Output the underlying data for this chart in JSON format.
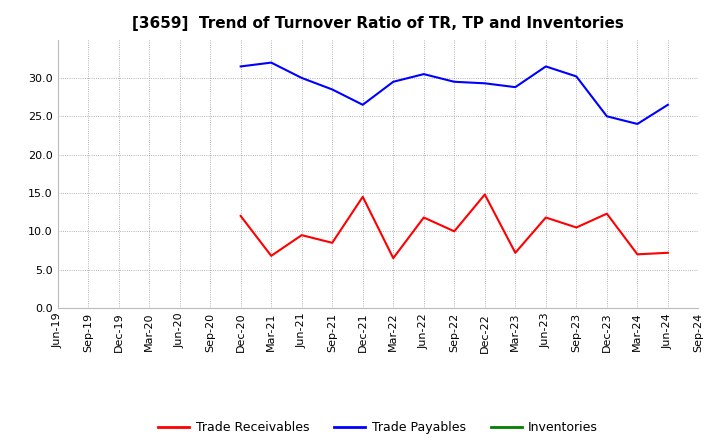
{
  "title": "[3659]  Trend of Turnover Ratio of TR, TP and Inventories",
  "x_labels": [
    "Jun-19",
    "Sep-19",
    "Dec-19",
    "Mar-20",
    "Jun-20",
    "Sep-20",
    "Dec-20",
    "Mar-21",
    "Jun-21",
    "Sep-21",
    "Dec-21",
    "Mar-22",
    "Jun-22",
    "Sep-22",
    "Dec-22",
    "Mar-23",
    "Jun-23",
    "Sep-23",
    "Dec-23",
    "Mar-24",
    "Jun-24",
    "Sep-24"
  ],
  "trade_receivables": [
    null,
    null,
    null,
    null,
    null,
    null,
    12.0,
    6.8,
    9.5,
    8.5,
    14.5,
    6.5,
    11.8,
    10.0,
    14.8,
    7.2,
    11.8,
    10.5,
    12.3,
    7.0,
    7.2,
    null
  ],
  "trade_payables": [
    null,
    null,
    null,
    null,
    null,
    null,
    31.5,
    32.0,
    30.0,
    28.5,
    26.5,
    29.5,
    30.5,
    29.5,
    29.3,
    28.8,
    31.5,
    30.2,
    25.0,
    24.0,
    26.5,
    null
  ],
  "inventories": [
    null,
    null,
    null,
    null,
    null,
    null,
    null,
    null,
    null,
    null,
    null,
    null,
    null,
    null,
    null,
    null,
    null,
    null,
    null,
    null,
    null,
    null
  ],
  "tr_color": "#ff0000",
  "tp_color": "#0000ff",
  "inv_color": "#008000",
  "background_color": "#ffffff",
  "grid_color": "#aaaaaa",
  "ylim": [
    0.0,
    35.0
  ],
  "yticks": [
    0.0,
    5.0,
    10.0,
    15.0,
    20.0,
    25.0,
    30.0
  ],
  "title_fontsize": 11,
  "legend_fontsize": 9,
  "tick_fontsize": 8
}
